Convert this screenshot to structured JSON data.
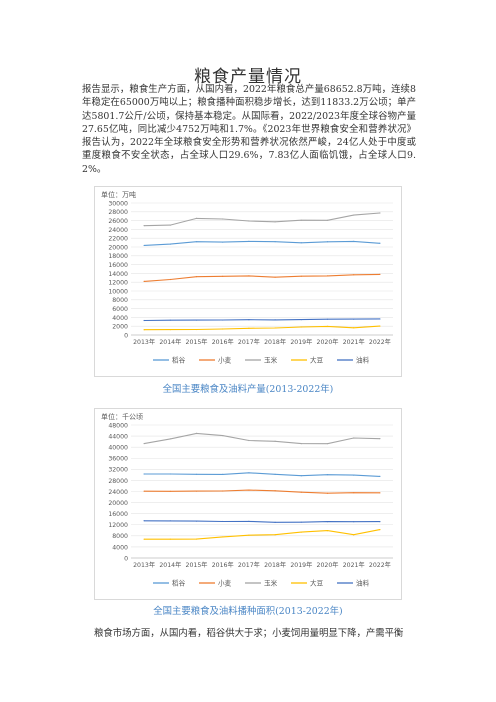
{
  "doc": {
    "title": "粮食产量情况",
    "paragraph": "报告显示，粮食生产方面，从国内看，2022年粮食总产量68652.8万吨，连续8年稳定在65000万吨以上；粮食播种面积稳步增长，达到11833.2万公顷；单产达5801.7公斤/公顷，保持基本稳定。从国际看，2022/2023年度全球谷物产量27.65亿吨，同比减少4752万吨和1.7%。《2023年世界粮食安全和营养状况》报告认为，2022年全球粮食安全形势和营养状况依然严峻，24亿人处于中度或重度粮食不安全状态，占全球人口29.6%，7.83亿人面临饥饿，占全球人口9.2%。",
    "caption1": "全国主要粮食及油料产量(2013-2022年)",
    "caption2": "全国主要粮食及油料播种面积(2013-2022年)",
    "tail": "粮食市场方面，从国内看，稻谷供大于求；小麦饲用量明显下降，产需平衡"
  },
  "chart_data": [
    {
      "type": "line",
      "unit_label": "单位：万吨",
      "categories": [
        "2013年",
        "2014年",
        "2015年",
        "2016年",
        "2017年",
        "2018年",
        "2019年",
        "2020年",
        "2021年",
        "2022年"
      ],
      "ylim": [
        0,
        30000
      ],
      "yticks": [
        0,
        2000,
        4000,
        6000,
        8000,
        10000,
        12000,
        14000,
        16000,
        18000,
        20000,
        22000,
        24000,
        26000,
        28000,
        30000
      ],
      "grid": true,
      "legend_position": "bottom",
      "series": [
        {
          "name": "稻谷",
          "color": "#5b9bd5",
          "values": [
            20360,
            20650,
            21210,
            21110,
            21270,
            21210,
            20960,
            21190,
            21280,
            20850
          ]
        },
        {
          "name": "小麦",
          "color": "#ed7d31",
          "values": [
            12190,
            12620,
            13260,
            13330,
            13430,
            13140,
            13360,
            13430,
            13690,
            13770
          ]
        },
        {
          "name": "玉米",
          "color": "#a5a5a5",
          "values": [
            24850,
            24980,
            26500,
            26360,
            25910,
            25720,
            26080,
            26070,
            27260,
            27720
          ]
        },
        {
          "name": "大豆",
          "color": "#ffc000",
          "values": [
            1200,
            1220,
            1240,
            1360,
            1530,
            1600,
            1810,
            1960,
            1640,
            2030
          ]
        },
        {
          "name": "油料",
          "color": "#4472c4",
          "values": [
            3290,
            3370,
            3390,
            3400,
            3480,
            3430,
            3490,
            3590,
            3610,
            3650
          ]
        }
      ]
    },
    {
      "type": "line",
      "unit_label": "单位：千公顷",
      "categories": [
        "2013年",
        "2014年",
        "2015年",
        "2016年",
        "2017年",
        "2018年",
        "2019年",
        "2020年",
        "2021年",
        "2022年"
      ],
      "ylim": [
        0,
        48000
      ],
      "yticks": [
        0,
        4000,
        8000,
        12000,
        16000,
        20000,
        24000,
        28000,
        32000,
        36000,
        40000,
        44000,
        48000
      ],
      "grid": true,
      "legend_position": "bottom",
      "series": [
        {
          "name": "稻谷",
          "color": "#5b9bd5",
          "values": [
            30310,
            30310,
            30210,
            30180,
            30750,
            30190,
            29690,
            30080,
            29920,
            29450
          ]
        },
        {
          "name": "小麦",
          "color": "#ed7d31",
          "values": [
            24120,
            24070,
            24140,
            24190,
            24510,
            24270,
            23730,
            23380,
            23570,
            23520
          ]
        },
        {
          "name": "玉米",
          "color": "#a5a5a5",
          "values": [
            41300,
            42990,
            44970,
            44180,
            42400,
            42130,
            41280,
            41260,
            43320,
            43070
          ]
        },
        {
          "name": "大豆",
          "color": "#ffc000",
          "values": [
            6790,
            6800,
            6830,
            7600,
            8240,
            8410,
            9330,
            9880,
            8400,
            10240
          ]
        },
        {
          "name": "油料",
          "color": "#4472c4",
          "values": [
            13440,
            13400,
            13300,
            13190,
            13220,
            12870,
            12930,
            13130,
            13100,
            13140
          ]
        }
      ]
    }
  ]
}
